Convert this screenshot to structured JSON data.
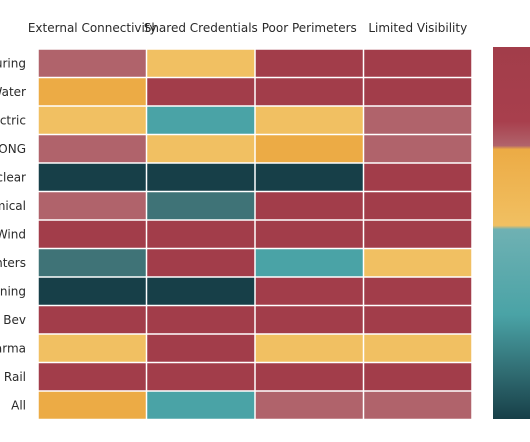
{
  "chart_data": {
    "type": "heatmap",
    "columns": [
      "External Connectivity",
      "Shared Credentials",
      "Poor Perimeters",
      "Limited Visibility"
    ],
    "rows": [
      "uring",
      "Water",
      "ectric",
      "ONG",
      "uclear",
      "mical",
      "Wind",
      "enters",
      "ining",
      "& Bev",
      "arma",
      "Rail",
      "All"
    ],
    "levels": {
      "dark_teal": "#173f48",
      "slate_teal": "#3f7377",
      "teal": "#4aa3a6",
      "light_orange": "#f1c062",
      "orange": "#ecab45",
      "mauve": "#b0636b",
      "crimson": "#a23d4a"
    },
    "cells": [
      [
        "mauve",
        "light_orange",
        "crimson",
        "crimson"
      ],
      [
        "orange",
        "crimson",
        "crimson",
        "crimson"
      ],
      [
        "light_orange",
        "teal",
        "light_orange",
        "mauve"
      ],
      [
        "mauve",
        "light_orange",
        "orange",
        "mauve"
      ],
      [
        "dark_teal",
        "dark_teal",
        "dark_teal",
        "crimson"
      ],
      [
        "mauve",
        "slate_teal",
        "crimson",
        "crimson"
      ],
      [
        "crimson",
        "crimson",
        "crimson",
        "crimson"
      ],
      [
        "slate_teal",
        "crimson",
        "teal",
        "light_orange"
      ],
      [
        "dark_teal",
        "dark_teal",
        "crimson",
        "crimson"
      ],
      [
        "crimson",
        "crimson",
        "crimson",
        "crimson"
      ],
      [
        "light_orange",
        "crimson",
        "light_orange",
        "light_orange"
      ],
      [
        "crimson",
        "crimson",
        "crimson",
        "crimson"
      ],
      [
        "orange",
        "teal",
        "mauve",
        "mauve"
      ]
    ],
    "color_scale": [
      "#a23d4a",
      "#b0636b",
      "#ecab45",
      "#f1c062",
      "#4aa3a6",
      "#3f7377",
      "#173f48"
    ],
    "legend": "right"
  }
}
